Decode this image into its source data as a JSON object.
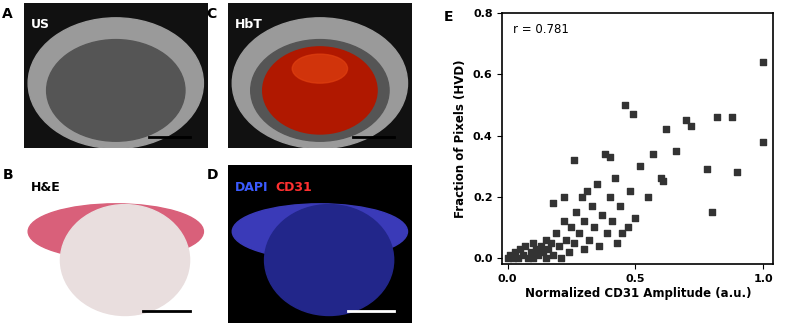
{
  "panels": [
    {
      "label": "A",
      "texts": [
        {
          "text": "US",
          "color": "#ffffff"
        }
      ]
    },
    {
      "label": "B",
      "texts": [
        {
          "text": "H&E",
          "color": "#000000"
        }
      ]
    },
    {
      "label": "C",
      "texts": [
        {
          "text": "HbT",
          "color": "#ffffff"
        }
      ]
    },
    {
      "label": "D",
      "texts": [
        {
          "text": "DAPI",
          "color": "#3b5bff"
        },
        {
          "text": "CD31",
          "color": "#ff3030"
        }
      ]
    }
  ],
  "chart_data": {
    "type": "scatter",
    "label": "E",
    "annotation": "r = 0.781",
    "x_label": "Normalized CD31 Amplitude (a.u.)",
    "y_label": "Fraction of Pixels (HVD)",
    "marker": "s",
    "color": "#333333",
    "x": [
      0.0,
      0.01,
      0.02,
      0.03,
      0.04,
      0.05,
      0.06,
      0.07,
      0.08,
      0.09,
      0.1,
      0.1,
      0.11,
      0.12,
      0.13,
      0.14,
      0.15,
      0.15,
      0.16,
      0.17,
      0.18,
      0.18,
      0.19,
      0.2,
      0.21,
      0.22,
      0.22,
      0.23,
      0.24,
      0.25,
      0.26,
      0.26,
      0.27,
      0.28,
      0.29,
      0.3,
      0.3,
      0.31,
      0.32,
      0.33,
      0.34,
      0.35,
      0.36,
      0.37,
      0.38,
      0.39,
      0.4,
      0.4,
      0.41,
      0.42,
      0.43,
      0.44,
      0.45,
      0.46,
      0.47,
      0.48,
      0.49,
      0.5,
      0.52,
      0.55,
      0.57,
      0.6,
      0.61,
      0.62,
      0.66,
      0.7,
      0.72,
      0.78,
      0.8,
      0.82,
      0.88,
      0.9,
      1.0,
      1.0
    ],
    "values": [
      0.0,
      0.01,
      0.0,
      0.02,
      0.0,
      0.03,
      0.01,
      0.04,
      0.0,
      0.02,
      0.05,
      0.0,
      0.03,
      0.01,
      0.04,
      0.02,
      0.0,
      0.06,
      0.03,
      0.05,
      0.18,
      0.01,
      0.08,
      0.04,
      0.0,
      0.12,
      0.2,
      0.06,
      0.02,
      0.1,
      0.32,
      0.05,
      0.15,
      0.08,
      0.2,
      0.12,
      0.03,
      0.22,
      0.06,
      0.17,
      0.1,
      0.24,
      0.04,
      0.14,
      0.34,
      0.08,
      0.33,
      0.2,
      0.12,
      0.26,
      0.05,
      0.17,
      0.08,
      0.5,
      0.1,
      0.22,
      0.47,
      0.13,
      0.3,
      0.2,
      0.34,
      0.26,
      0.25,
      0.42,
      0.35,
      0.45,
      0.43,
      0.29,
      0.15,
      0.46,
      0.46,
      0.28,
      0.64,
      0.38
    ],
    "xlim": [
      -0.02,
      1.04
    ],
    "ylim": [
      -0.02,
      0.8
    ],
    "xticks": [
      {
        "value": 0.0,
        "label": "0.0"
      },
      {
        "value": 0.5,
        "label": "0.5"
      },
      {
        "value": 1.0,
        "label": "1.0"
      }
    ],
    "yticks": [
      {
        "value": 0.0,
        "label": "0.0"
      },
      {
        "value": 0.2,
        "label": "0.2"
      },
      {
        "value": 0.4,
        "label": "0.4"
      },
      {
        "value": 0.6,
        "label": "0.6"
      },
      {
        "value": 0.8,
        "label": "0.8"
      }
    ],
    "grid": false
  }
}
